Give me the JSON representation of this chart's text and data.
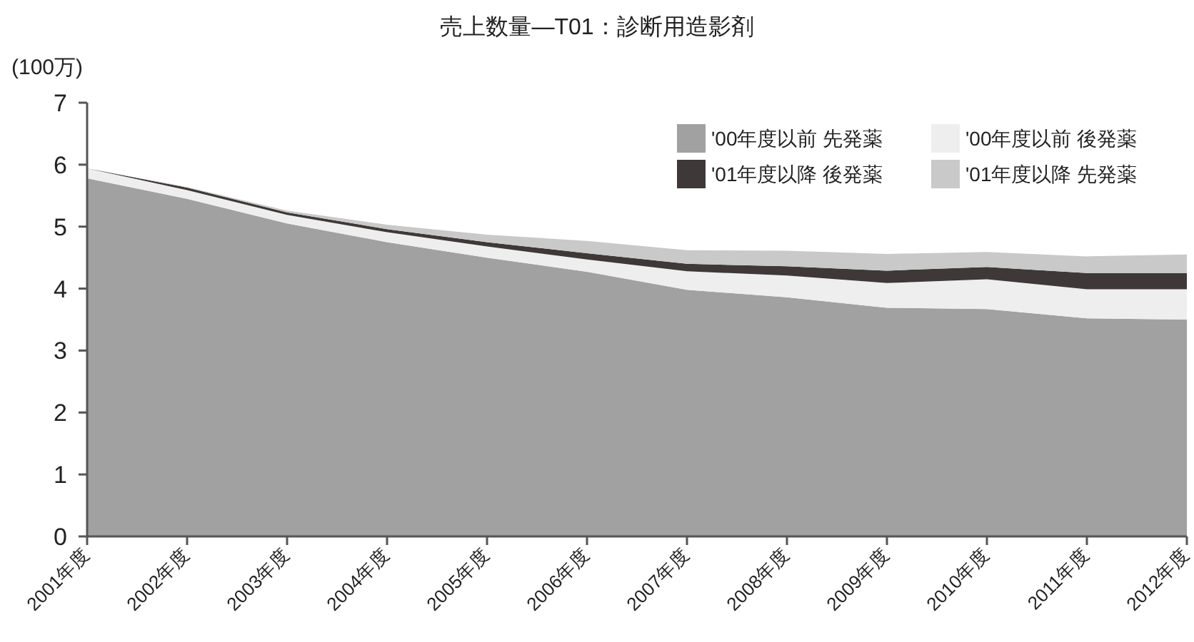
{
  "chart_data": {
    "type": "area",
    "stacked": true,
    "title": "売上数量―T01：診断用造影剤",
    "ylabel": "(100万)",
    "categories": [
      "2001年度",
      "2002年度",
      "2003年度",
      "2004年度",
      "2005年度",
      "2006年度",
      "2007年度",
      "2008年度",
      "2009年度",
      "2010年度",
      "2011年度",
      "2012年度"
    ],
    "ylim": [
      0,
      7
    ],
    "yticks": [
      0,
      1,
      2,
      3,
      4,
      5,
      6,
      7
    ],
    "legend": "top right",
    "series": [
      {
        "name": "'00年度以前 先発薬",
        "color": "#a0a1a0",
        "values": [
          5.78,
          5.45,
          5.05,
          4.75,
          4.5,
          4.27,
          3.98,
          3.86,
          3.69,
          3.67,
          3.52,
          3.5
        ]
      },
      {
        "name": "'00年度以前 後発薬",
        "color": "#eeeeee",
        "values": [
          0.16,
          0.14,
          0.14,
          0.16,
          0.18,
          0.2,
          0.3,
          0.35,
          0.4,
          0.48,
          0.47,
          0.49
        ]
      },
      {
        "name": "'01年度以降 後発薬",
        "color": "#3e3938",
        "values": [
          0,
          0.04,
          0.04,
          0.05,
          0.07,
          0.1,
          0.12,
          0.15,
          0.2,
          0.2,
          0.26,
          0.26
        ]
      },
      {
        "name": "'01年度以降 先発薬",
        "color": "#c8c9c8",
        "values": [
          0,
          0.01,
          0.03,
          0.07,
          0.12,
          0.2,
          0.22,
          0.25,
          0.27,
          0.24,
          0.27,
          0.3
        ]
      }
    ]
  }
}
